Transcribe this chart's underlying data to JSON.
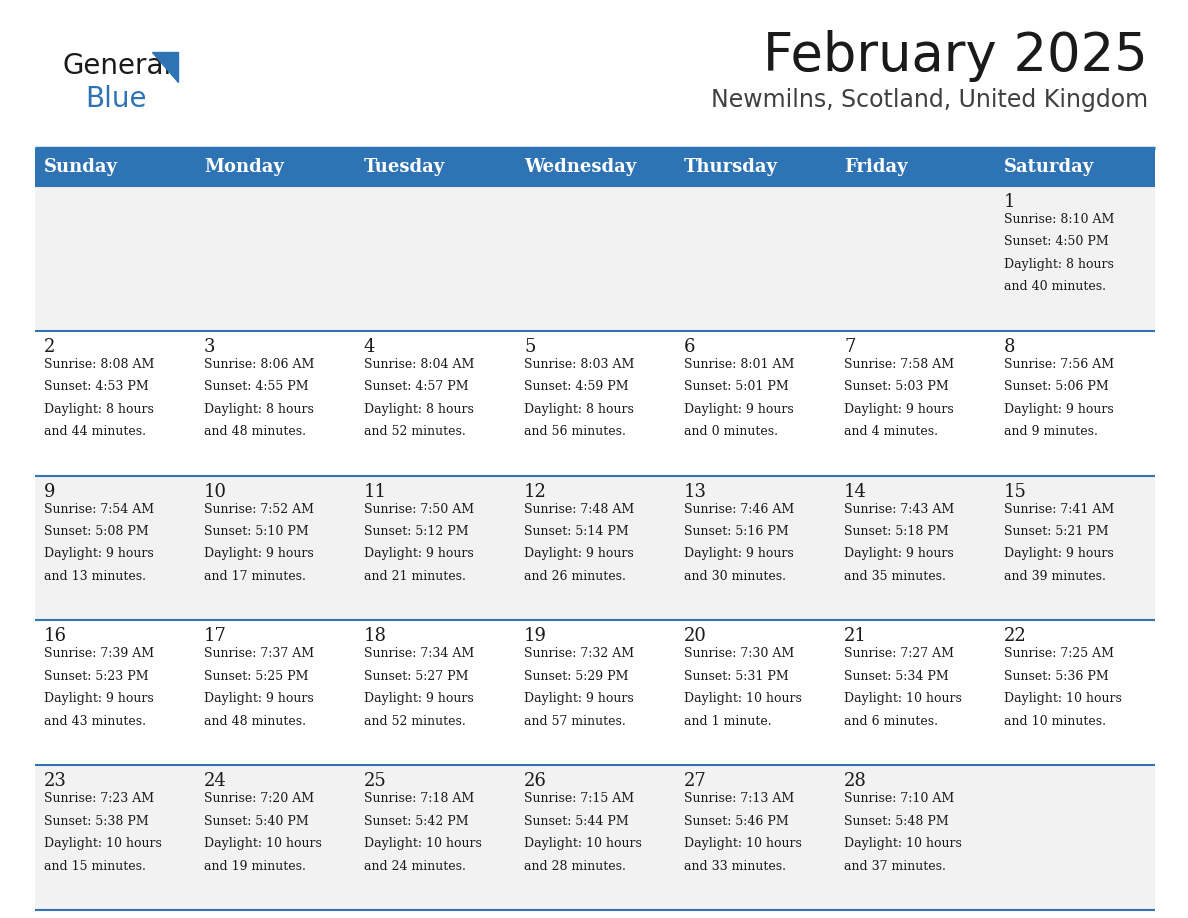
{
  "title": "February 2025",
  "subtitle": "Newmilns, Scotland, United Kingdom",
  "header_bg": "#2e74b5",
  "header_text": "#ffffff",
  "row_bg_light": "#f2f2f2",
  "row_bg_white": "#ffffff",
  "separator_color": "#2e74b5",
  "text_color": "#1a1a1a",
  "day_headers": [
    "Sunday",
    "Monday",
    "Tuesday",
    "Wednesday",
    "Thursday",
    "Friday",
    "Saturday"
  ],
  "calendar_data": [
    [
      null,
      null,
      null,
      null,
      null,
      null,
      {
        "day": "1",
        "sunrise": "8:10 AM",
        "sunset": "4:50 PM",
        "daylight1": "8 hours",
        "daylight2": "and 40 minutes."
      }
    ],
    [
      {
        "day": "2",
        "sunrise": "8:08 AM",
        "sunset": "4:53 PM",
        "daylight1": "8 hours",
        "daylight2": "and 44 minutes."
      },
      {
        "day": "3",
        "sunrise": "8:06 AM",
        "sunset": "4:55 PM",
        "daylight1": "8 hours",
        "daylight2": "and 48 minutes."
      },
      {
        "day": "4",
        "sunrise": "8:04 AM",
        "sunset": "4:57 PM",
        "daylight1": "8 hours",
        "daylight2": "and 52 minutes."
      },
      {
        "day": "5",
        "sunrise": "8:03 AM",
        "sunset": "4:59 PM",
        "daylight1": "8 hours",
        "daylight2": "and 56 minutes."
      },
      {
        "day": "6",
        "sunrise": "8:01 AM",
        "sunset": "5:01 PM",
        "daylight1": "9 hours",
        "daylight2": "and 0 minutes."
      },
      {
        "day": "7",
        "sunrise": "7:58 AM",
        "sunset": "5:03 PM",
        "daylight1": "9 hours",
        "daylight2": "and 4 minutes."
      },
      {
        "day": "8",
        "sunrise": "7:56 AM",
        "sunset": "5:06 PM",
        "daylight1": "9 hours",
        "daylight2": "and 9 minutes."
      }
    ],
    [
      {
        "day": "9",
        "sunrise": "7:54 AM",
        "sunset": "5:08 PM",
        "daylight1": "9 hours",
        "daylight2": "and 13 minutes."
      },
      {
        "day": "10",
        "sunrise": "7:52 AM",
        "sunset": "5:10 PM",
        "daylight1": "9 hours",
        "daylight2": "and 17 minutes."
      },
      {
        "day": "11",
        "sunrise": "7:50 AM",
        "sunset": "5:12 PM",
        "daylight1": "9 hours",
        "daylight2": "and 21 minutes."
      },
      {
        "day": "12",
        "sunrise": "7:48 AM",
        "sunset": "5:14 PM",
        "daylight1": "9 hours",
        "daylight2": "and 26 minutes."
      },
      {
        "day": "13",
        "sunrise": "7:46 AM",
        "sunset": "5:16 PM",
        "daylight1": "9 hours",
        "daylight2": "and 30 minutes."
      },
      {
        "day": "14",
        "sunrise": "7:43 AM",
        "sunset": "5:18 PM",
        "daylight1": "9 hours",
        "daylight2": "and 35 minutes."
      },
      {
        "day": "15",
        "sunrise": "7:41 AM",
        "sunset": "5:21 PM",
        "daylight1": "9 hours",
        "daylight2": "and 39 minutes."
      }
    ],
    [
      {
        "day": "16",
        "sunrise": "7:39 AM",
        "sunset": "5:23 PM",
        "daylight1": "9 hours",
        "daylight2": "and 43 minutes."
      },
      {
        "day": "17",
        "sunrise": "7:37 AM",
        "sunset": "5:25 PM",
        "daylight1": "9 hours",
        "daylight2": "and 48 minutes."
      },
      {
        "day": "18",
        "sunrise": "7:34 AM",
        "sunset": "5:27 PM",
        "daylight1": "9 hours",
        "daylight2": "and 52 minutes."
      },
      {
        "day": "19",
        "sunrise": "7:32 AM",
        "sunset": "5:29 PM",
        "daylight1": "9 hours",
        "daylight2": "and 57 minutes."
      },
      {
        "day": "20",
        "sunrise": "7:30 AM",
        "sunset": "5:31 PM",
        "daylight1": "10 hours",
        "daylight2": "and 1 minute."
      },
      {
        "day": "21",
        "sunrise": "7:27 AM",
        "sunset": "5:34 PM",
        "daylight1": "10 hours",
        "daylight2": "and 6 minutes."
      },
      {
        "day": "22",
        "sunrise": "7:25 AM",
        "sunset": "5:36 PM",
        "daylight1": "10 hours",
        "daylight2": "and 10 minutes."
      }
    ],
    [
      {
        "day": "23",
        "sunrise": "7:23 AM",
        "sunset": "5:38 PM",
        "daylight1": "10 hours",
        "daylight2": "and 15 minutes."
      },
      {
        "day": "24",
        "sunrise": "7:20 AM",
        "sunset": "5:40 PM",
        "daylight1": "10 hours",
        "daylight2": "and 19 minutes."
      },
      {
        "day": "25",
        "sunrise": "7:18 AM",
        "sunset": "5:42 PM",
        "daylight1": "10 hours",
        "daylight2": "and 24 minutes."
      },
      {
        "day": "26",
        "sunrise": "7:15 AM",
        "sunset": "5:44 PM",
        "daylight1": "10 hours",
        "daylight2": "and 28 minutes."
      },
      {
        "day": "27",
        "sunrise": "7:13 AM",
        "sunset": "5:46 PM",
        "daylight1": "10 hours",
        "daylight2": "and 33 minutes."
      },
      {
        "day": "28",
        "sunrise": "7:10 AM",
        "sunset": "5:48 PM",
        "daylight1": "10 hours",
        "daylight2": "and 37 minutes."
      },
      null
    ]
  ],
  "logo_general_color": "#1a1a1a",
  "logo_blue_color": "#2e74b5",
  "logo_triangle_color": "#2e74b5",
  "title_fontsize": 38,
  "subtitle_fontsize": 17,
  "header_fontsize": 13,
  "day_num_fontsize": 13,
  "cell_text_fontsize": 9
}
